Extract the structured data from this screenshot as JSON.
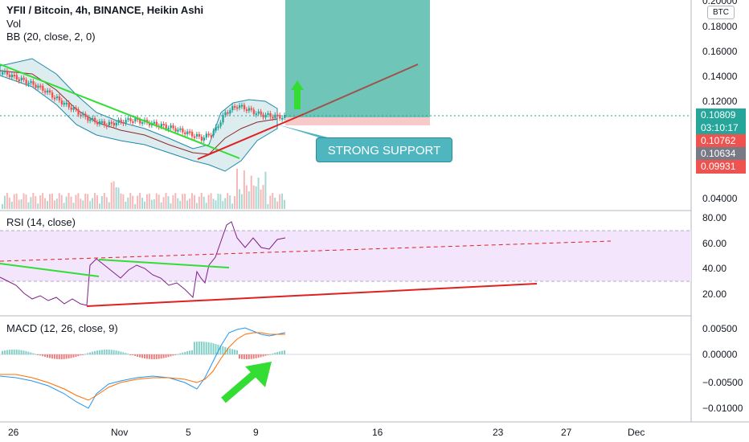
{
  "header": {
    "title": "YFII / Bitcoin, 4h, BINANCE, Heikin Ashi",
    "vol_label": "Vol",
    "bb_label": "BB (20, close, 2, 0)",
    "currency_badge": "BTC"
  },
  "price_axis": {
    "ticks": [
      "0.20000",
      "0.18000",
      "0.16000",
      "0.14000",
      "0.12000",
      "0.04000"
    ]
  },
  "price_badges": [
    {
      "text": "0.10809",
      "color": "#26a69a"
    },
    {
      "text": "03:10:17",
      "color": "#26a69a"
    },
    {
      "text": "0.10762",
      "color": "#ef5350"
    },
    {
      "text": "0.10634",
      "color": "#787b86"
    },
    {
      "text": "0.09931",
      "color": "#ef5350"
    }
  ],
  "annotation": {
    "callout_text": "STRONG SUPPORT"
  },
  "rsi": {
    "label": "RSI (14, close)",
    "ticks": [
      "80.00",
      "60.00",
      "40.00",
      "20.00"
    ]
  },
  "macd": {
    "label": "MACD (12, 26, close, 9)",
    "ticks": [
      "0.00500",
      "0.00000",
      "−0.00500",
      "−0.01000"
    ]
  },
  "time_axis": {
    "ticks": [
      "26",
      "Nov",
      "5",
      "9",
      "16",
      "23",
      "27",
      "Dec"
    ]
  },
  "colors": {
    "up": "#26a69a",
    "down": "#ef5350",
    "bb_fill": "#e3f0f2",
    "rsi_band": "#f3e5fb",
    "target_zone": "#5fbfb0",
    "stop_zone": "#f8c9c9",
    "trend_green": "#33dd33",
    "trend_red": "#e02020",
    "projection": "#a0524d"
  },
  "chart_data": {
    "type": "candlestick",
    "symbol": "YFII / Bitcoin",
    "interval": "4h",
    "exchange": "BINANCE",
    "style": "Heikin Ashi",
    "price_ylim": [
      0.032,
      0.2
    ],
    "last_price": 0.10809,
    "candle_closes_approx": [
      0.146,
      0.142,
      0.138,
      0.134,
      0.128,
      0.121,
      0.115,
      0.108,
      0.104,
      0.102,
      0.104,
      0.106,
      0.104,
      0.102,
      0.1,
      0.097,
      0.094,
      0.09,
      0.096,
      0.112,
      0.118,
      0.114,
      0.11,
      0.109,
      0.108
    ],
    "rsi_ylim": [
      10,
      82
    ],
    "rsi_band": [
      30,
      70
    ],
    "macd_ylim": [
      -0.0115,
      0.006
    ]
  }
}
